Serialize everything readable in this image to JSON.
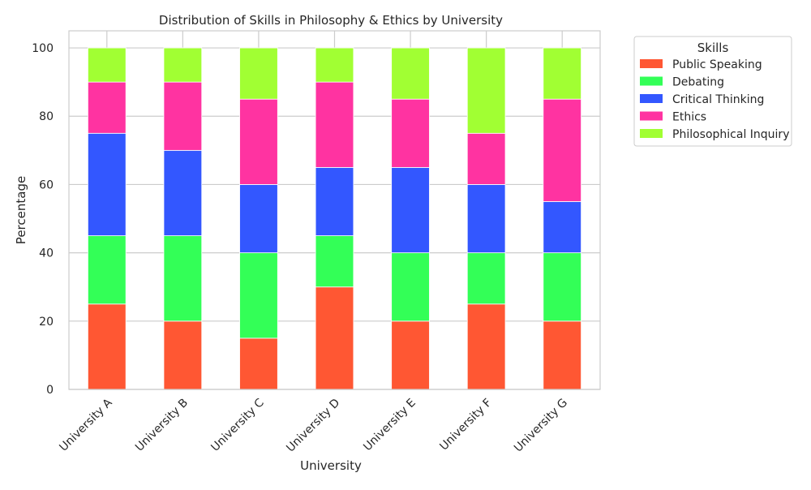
{
  "chart_data": {
    "type": "bar",
    "stacked": true,
    "title": "Distribution of Skills in Philosophy & Ethics by University",
    "xlabel": "University",
    "ylabel": "Percentage",
    "ylim": [
      0,
      105
    ],
    "yticks": [
      0,
      20,
      40,
      60,
      80,
      100
    ],
    "grid": true,
    "legend_title": "Skills",
    "legend_position": "outside-right-top",
    "categories": [
      "University A",
      "University B",
      "University C",
      "University D",
      "University E",
      "University F",
      "University G"
    ],
    "series": [
      {
        "name": "Public Speaking",
        "color": "#ff5733",
        "values": [
          25,
          20,
          15,
          30,
          20,
          25,
          20
        ]
      },
      {
        "name": "Debating",
        "color": "#33ff57",
        "values": [
          20,
          25,
          25,
          15,
          20,
          15,
          20
        ]
      },
      {
        "name": "Critical Thinking",
        "color": "#3357ff",
        "values": [
          30,
          25,
          20,
          20,
          25,
          20,
          15
        ]
      },
      {
        "name": "Ethics",
        "color": "#ff33a1",
        "values": [
          15,
          20,
          25,
          25,
          20,
          15,
          30
        ]
      },
      {
        "name": "Philosophical Inquiry",
        "color": "#a1ff33",
        "values": [
          10,
          10,
          15,
          10,
          15,
          25,
          15
        ]
      }
    ]
  }
}
